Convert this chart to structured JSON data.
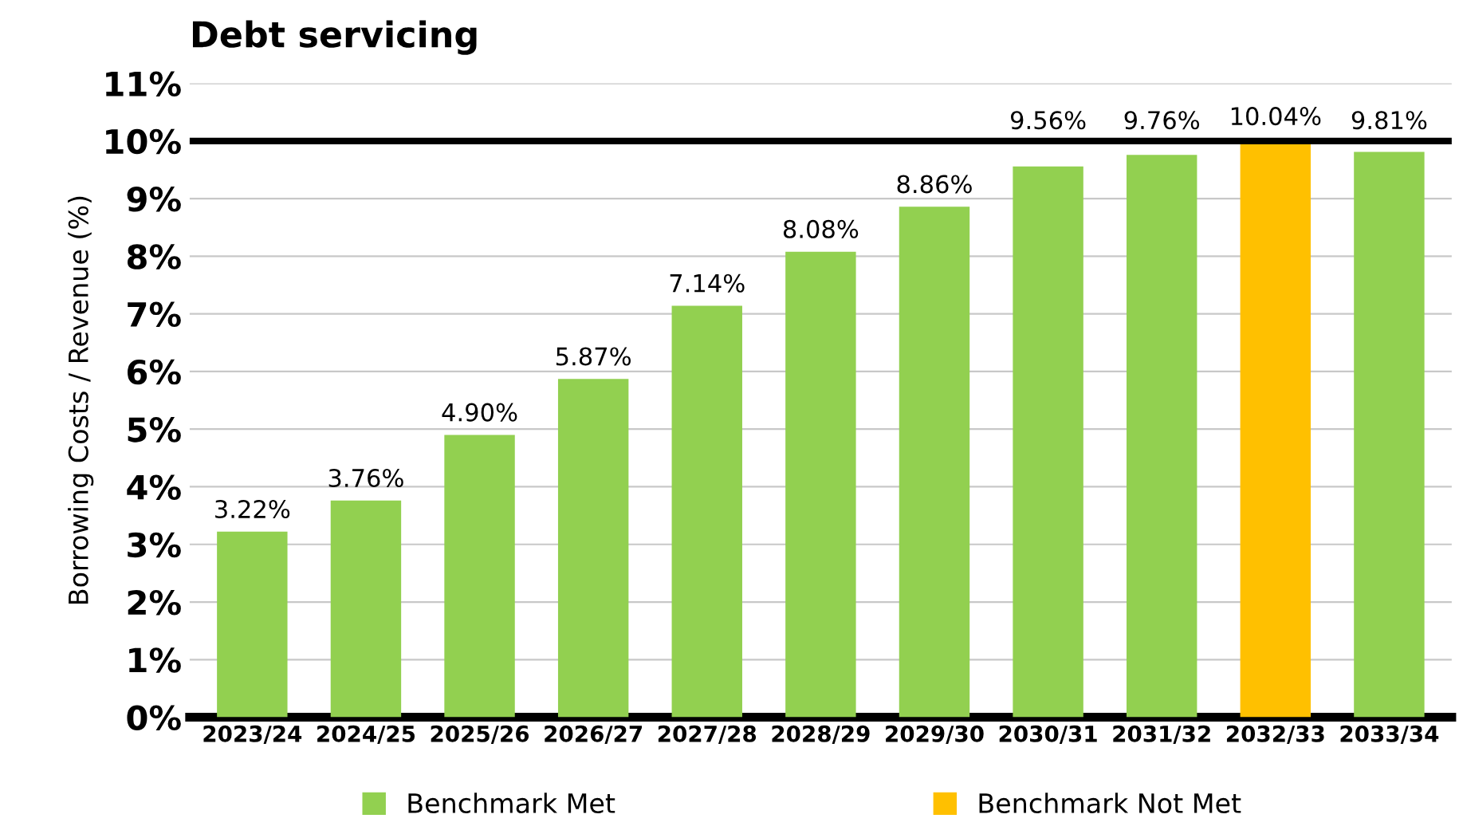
{
  "chart_data": {
    "type": "bar",
    "title": "Debt servicing",
    "ylabel": "Borrowing Costs / Revenue (%)",
    "categories": [
      "2023/24",
      "2024/25",
      "2025/26",
      "2026/27",
      "2027/28",
      "2028/29",
      "2029/30",
      "2030/31",
      "2031/32",
      "2032/33",
      "2033/34"
    ],
    "series": [
      {
        "name": "Benchmark Met",
        "color": "#92d050",
        "values": [
          3.22,
          3.76,
          4.9,
          5.87,
          7.14,
          8.08,
          8.86,
          9.56,
          9.76,
          null,
          9.81
        ],
        "value_labels": [
          "3.22%",
          "3.76%",
          "4.90%",
          "5.87%",
          "7.14%",
          "8.08%",
          "8.86%",
          "9.56%",
          "9.76%",
          null,
          "9.81%"
        ]
      },
      {
        "name": "Benchmark Not Met",
        "color": "#ffc000",
        "values": [
          null,
          null,
          null,
          null,
          null,
          null,
          null,
          null,
          null,
          10.04,
          null
        ],
        "value_labels": [
          null,
          null,
          null,
          null,
          null,
          null,
          null,
          null,
          null,
          "10.04%",
          null
        ]
      }
    ],
    "ylim": [
      0,
      11
    ],
    "yticks": [
      {
        "value": 0,
        "label": "0%"
      },
      {
        "value": 1,
        "label": "1%"
      },
      {
        "value": 2,
        "label": "2%"
      },
      {
        "value": 3,
        "label": "3%"
      },
      {
        "value": 4,
        "label": "4%"
      },
      {
        "value": 5,
        "label": "5%"
      },
      {
        "value": 6,
        "label": "6%"
      },
      {
        "value": 7,
        "label": "7%"
      },
      {
        "value": 8,
        "label": "8%"
      },
      {
        "value": 9,
        "label": "9%"
      },
      {
        "value": 10,
        "label": "10%"
      },
      {
        "value": 11,
        "label": "11%"
      }
    ],
    "ref_lines": [
      {
        "axis": "y",
        "value": 10,
        "color": "#000000"
      }
    ],
    "grid": "y",
    "legend": "bottom"
  }
}
